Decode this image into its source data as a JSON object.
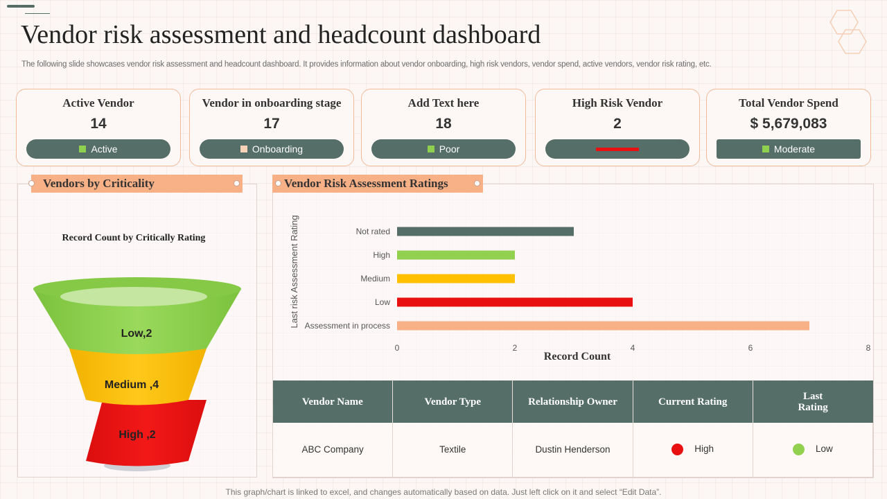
{
  "title": "Vendor risk assessment and headcount dashboard",
  "subtitle": "The following slide showcases vendor risk assessment and headcount dashboard. It provides information about vendor onboarding, high risk vendors, vendor spend, active vendors, vendor risk rating, etc.",
  "kpis": [
    {
      "title": "Active Vendor",
      "value": "14",
      "badge": "Active",
      "square_color": "#8fd14f"
    },
    {
      "title": "Vendor in onboarding stage",
      "value": "17",
      "badge": "Onboarding",
      "square_color": "#f8d3b8"
    },
    {
      "title": "Add Text here",
      "value": "18",
      "badge": "Poor",
      "square_color": "#8fd14f"
    },
    {
      "title": "High Risk Vendor",
      "value": "2",
      "badge": "",
      "line_color": "#e81010"
    },
    {
      "title": "Total Vendor Spend",
      "value": "$ 5,679,083",
      "badge": "Moderate",
      "square_color": "#8fd14f"
    }
  ],
  "criticality": {
    "panel_title": "Vendors by Criticality",
    "chart_title": "Record Count by Critically Rating",
    "segments": [
      {
        "label": "Low,2",
        "color": "#92d050"
      },
      {
        "label": "Medium ,4",
        "color": "#ffc000"
      },
      {
        "label": "High ,2",
        "color": "#e81010"
      }
    ]
  },
  "risk_ratings": {
    "panel_title": "Vendor Risk Assessment Ratings"
  },
  "chart_data": {
    "type": "bar",
    "orientation": "horizontal",
    "categories": [
      "Not rated",
      "High",
      "Medium",
      "Low",
      "Assessment in process"
    ],
    "values": [
      3,
      2,
      2,
      4,
      7
    ],
    "colors": [
      "#566e68",
      "#92d050",
      "#ffc000",
      "#e81010",
      "#f8b186"
    ],
    "xlabel": "Record Count",
    "ylabel": "Last risk Assessment Rating",
    "xlim": [
      0,
      8
    ],
    "xticks": [
      0,
      2,
      4,
      6,
      8
    ],
    "grid": false
  },
  "table": {
    "headers": [
      "Vendor Name",
      "Vendor Type",
      "Relationship Owner",
      "Current Rating",
      "Last\nRating"
    ],
    "row": {
      "vendor_name": "ABC Company",
      "vendor_type": "Textile",
      "owner": "Dustin Henderson",
      "current_rating": "High",
      "current_color": "#e81010",
      "last_rating": "Low",
      "last_color": "#92d050"
    }
  },
  "footer": "This graph/chart is linked to excel, and changes automatically based on data. Just left click on it and select “Edit Data”."
}
